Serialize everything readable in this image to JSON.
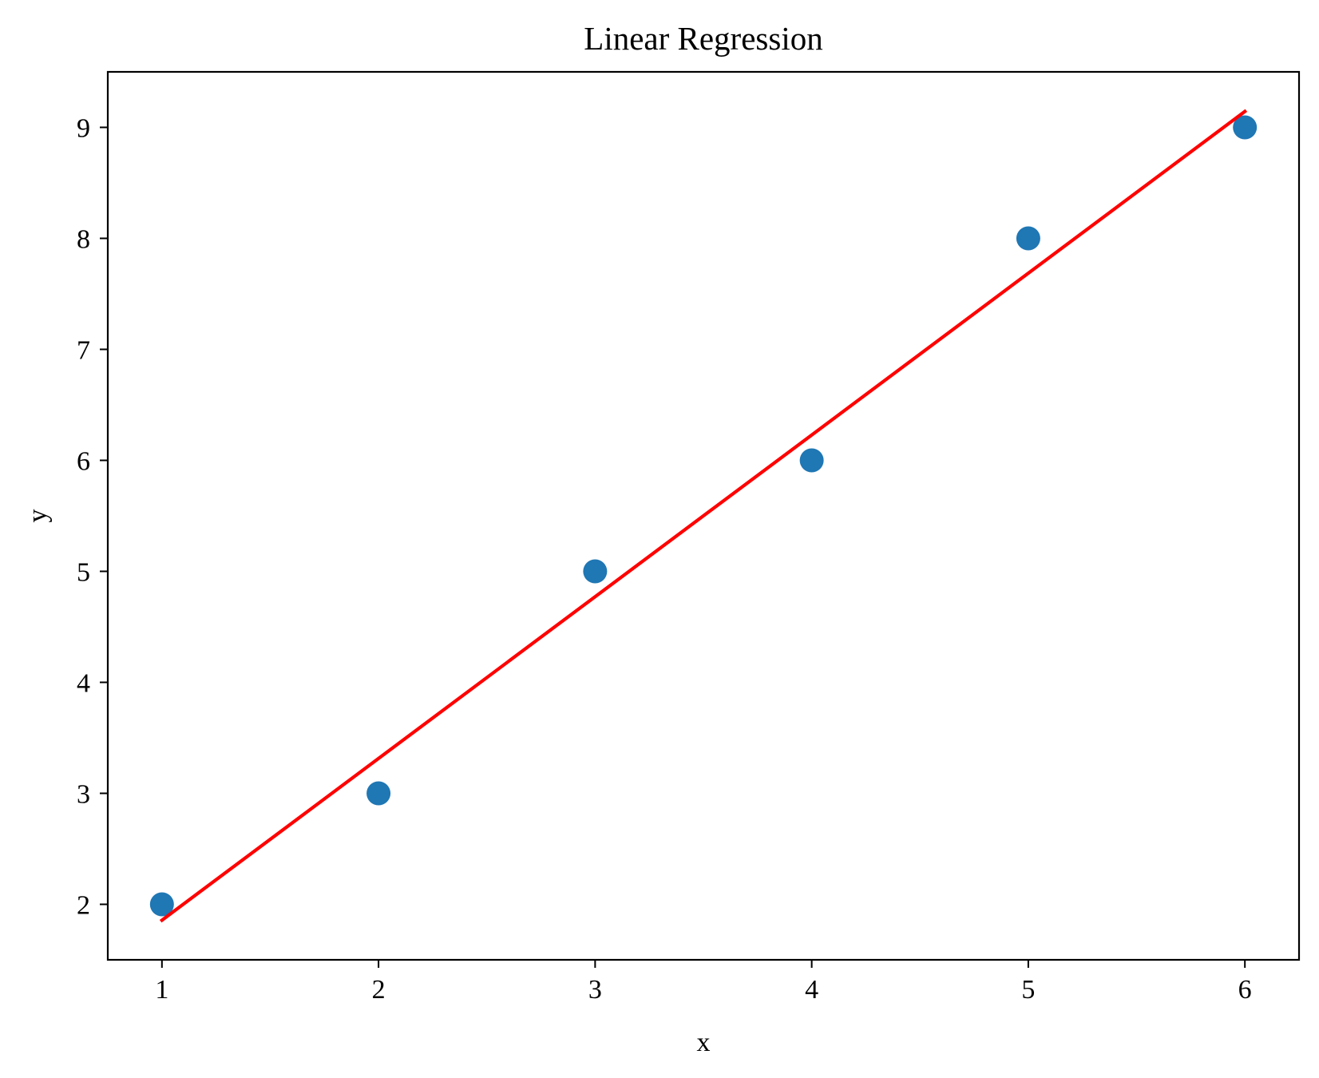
{
  "chart_data": {
    "type": "scatter",
    "title": "Linear Regression",
    "xlabel": "x",
    "ylabel": "y",
    "xlim": [
      0.75,
      6.25
    ],
    "ylim": [
      1.5,
      9.5
    ],
    "x_ticks": [
      1,
      2,
      3,
      4,
      5,
      6
    ],
    "y_ticks": [
      2,
      3,
      4,
      5,
      6,
      7,
      8,
      9
    ],
    "grid": false,
    "series": [
      {
        "type": "scatter",
        "x": [
          1,
          2,
          3,
          4,
          5,
          6
        ],
        "y": [
          2,
          3,
          5,
          6,
          8,
          9
        ],
        "color": "#1f77b4"
      },
      {
        "type": "line",
        "x": [
          1,
          6
        ],
        "y": [
          1.857,
          9.143
        ],
        "color": "#ff0000"
      }
    ]
  }
}
